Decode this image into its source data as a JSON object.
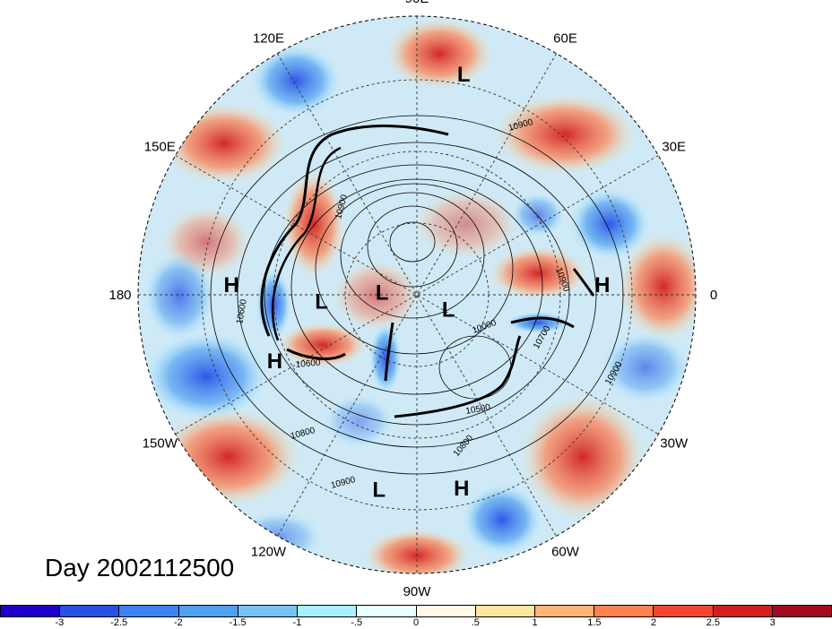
{
  "title": "Day 2002112500",
  "map": {
    "projection": "north-polar-stereographic",
    "longitude_labels": [
      {
        "text": "90E",
        "lon": 90
      },
      {
        "text": "60E",
        "lon": 60
      },
      {
        "text": "30E",
        "lon": 30
      },
      {
        "text": "0",
        "lon": 0
      },
      {
        "text": "30W",
        "lon": -30
      },
      {
        "text": "60W",
        "lon": -60
      },
      {
        "text": "90W",
        "lon": -90
      },
      {
        "text": "120W",
        "lon": -120
      },
      {
        "text": "150W",
        "lon": -150
      },
      {
        "text": "180",
        "lon": 180
      },
      {
        "text": "150E",
        "lon": 150
      },
      {
        "text": "120E",
        "lon": 120
      }
    ],
    "pressure_centers": [
      {
        "type": "L",
        "lat": 31,
        "lon": 78
      },
      {
        "type": "L",
        "lat": 80,
        "lon": 176
      },
      {
        "type": "L",
        "lat": 63,
        "lon": -176
      },
      {
        "type": "L",
        "lat": 80,
        "lon": -25
      },
      {
        "type": "L",
        "lat": 37,
        "lon": -101
      },
      {
        "type": "H",
        "lat": 47,
        "lon": -155
      },
      {
        "type": "H",
        "lat": 40,
        "lon": 177
      },
      {
        "type": "H",
        "lat": 40,
        "lon": 3
      },
      {
        "type": "H",
        "lat": 37,
        "lon": -77
      }
    ],
    "contour_labels": [
      "10900",
      "10900",
      "10900",
      "10900",
      "10600",
      "10600",
      "10700",
      "10000",
      "10500",
      "10800",
      "10800",
      "10900"
    ]
  },
  "colorbar": {
    "colors": [
      "#1e00c8",
      "#2850e6",
      "#3c82f0",
      "#50a0f0",
      "#78c3f5",
      "#aaf0ff",
      "#e6ffff",
      "#fffae6",
      "#ffe6a0",
      "#ffb478",
      "#ff8250",
      "#f04632",
      "#d21e1e",
      "#a00a1e"
    ],
    "tick_labels": [
      "-3",
      "-2.5",
      "-2",
      "-1.5",
      "-1",
      "-.5",
      "0",
      ".5",
      "1",
      "1.5",
      "2",
      "2.5",
      "3"
    ]
  }
}
